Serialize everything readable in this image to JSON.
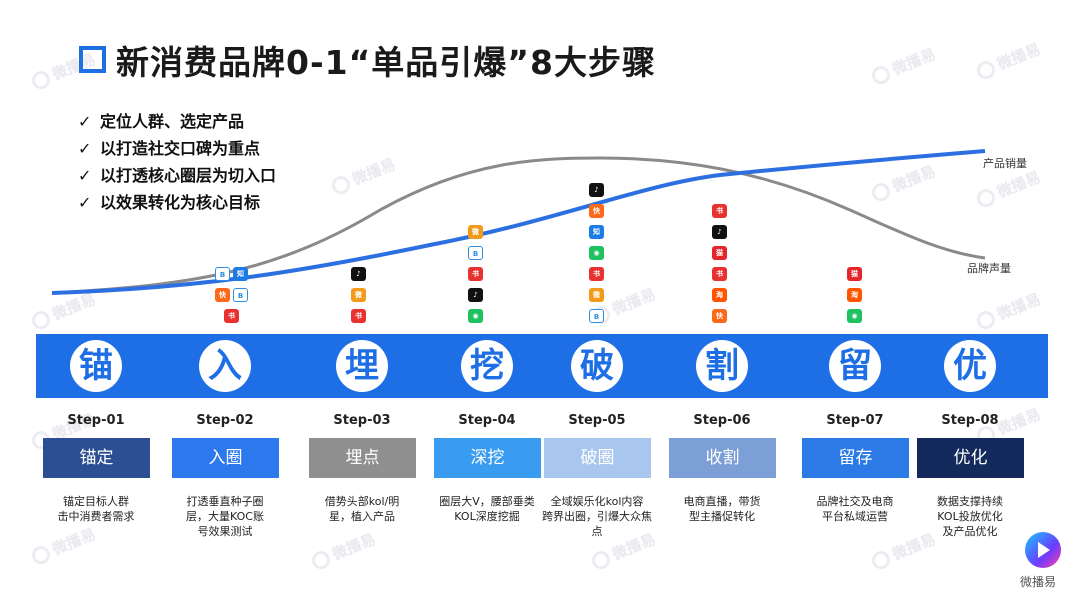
{
  "title": "新消费品牌0-1“单品引爆”8大步骤",
  "checks": [
    "定位人群、选定产品",
    "以打造社交口碑为重点",
    "以打透核心圈层为切入口",
    "以效果转化为核心目标"
  ],
  "curve_labels": {
    "sales": "产品销量",
    "voice": "品牌声量"
  },
  "watermark": "微播易",
  "logo_text": "微播易",
  "steps": [
    {
      "char": "锚",
      "step": "Step-01",
      "label": "锚定",
      "color": "#2c4f93",
      "desc": [
        "锚定目标人群",
        "击中消费者需求"
      ]
    },
    {
      "char": "入",
      "step": "Step-02",
      "label": "入圈",
      "color": "#2b79ec",
      "desc": [
        "打透垂直种子圈",
        "层，大量KOC账",
        "号效果测试"
      ]
    },
    {
      "char": "埋",
      "step": "Step-03",
      "label": "埋点",
      "color": "#8f8f8f",
      "desc": [
        "借势头部kol/明",
        "星，植入产品"
      ]
    },
    {
      "char": "挖",
      "step": "Step-04",
      "label": "深挖",
      "color": "#3a9cf0",
      "desc": [
        "圈层大V，腰部垂类",
        "KOL深度挖掘"
      ]
    },
    {
      "char": "破",
      "step": "Step-05",
      "label": "破圈",
      "color": "#a9c7ee",
      "desc": [
        "全域娱乐化kol内容",
        "跨界出圈，引爆大众焦点"
      ]
    },
    {
      "char": "割",
      "step": "Step-06",
      "label": "收割",
      "color": "#7d9fd8",
      "desc": [
        "电商直播，带货",
        "型主播促转化"
      ]
    },
    {
      "char": "留",
      "step": "Step-07",
      "label": "留存",
      "color": "#2b7ae6",
      "desc": [
        "品牌社交及电商",
        "平台私域运营"
      ]
    },
    {
      "char": "优",
      "step": "Step-08",
      "label": "优化",
      "color": "#142a5c",
      "desc": [
        "数据支撑持续",
        "KOL投放优化",
        "及产品优化"
      ]
    }
  ],
  "icon_colors": {
    "redbook": "#e8322f",
    "weibo": "#f29a1a",
    "douyin": "#111111",
    "wechat": "#20c160",
    "zhihu": "#1c7be5",
    "bilibili": "#2f8ee0",
    "kuaishou": "#ff6a1a",
    "taobao": "#ff5500",
    "tmall": "#e4262b"
  },
  "icon_columns": [
    {
      "step": "Step-02",
      "icons": [
        [
          "bilibili",
          "zhihu"
        ],
        [
          "kuaishou",
          "bilibili"
        ],
        [
          "redbook"
        ]
      ]
    },
    {
      "step": "Step-03",
      "icons": [
        [
          "douyin"
        ],
        [
          "weibo"
        ],
        [
          "redbook"
        ]
      ]
    },
    {
      "step": "Step-04",
      "icons": [
        [
          "weibo"
        ],
        [
          "bilibili"
        ],
        [
          "redbook"
        ],
        [
          "douyin"
        ],
        [
          "wechat"
        ]
      ]
    },
    {
      "step": "Step-05",
      "icons": [
        [
          "douyin"
        ],
        [
          "kuaishou"
        ],
        [
          "zhihu"
        ],
        [
          "wechat"
        ],
        [
          "redbook"
        ],
        [
          "weibo"
        ],
        [
          "bilibili"
        ]
      ]
    },
    {
      "step": "Step-06",
      "icons": [
        [
          "redbook"
        ],
        [
          "douyin"
        ],
        [
          "tmall"
        ],
        [
          "redbook"
        ],
        [
          "taobao"
        ],
        [
          "kuaishou"
        ]
      ]
    },
    {
      "step": "Step-07",
      "icons": [
        [
          "tmall"
        ],
        [
          "taobao"
        ],
        [
          "wechat"
        ]
      ]
    }
  ]
}
